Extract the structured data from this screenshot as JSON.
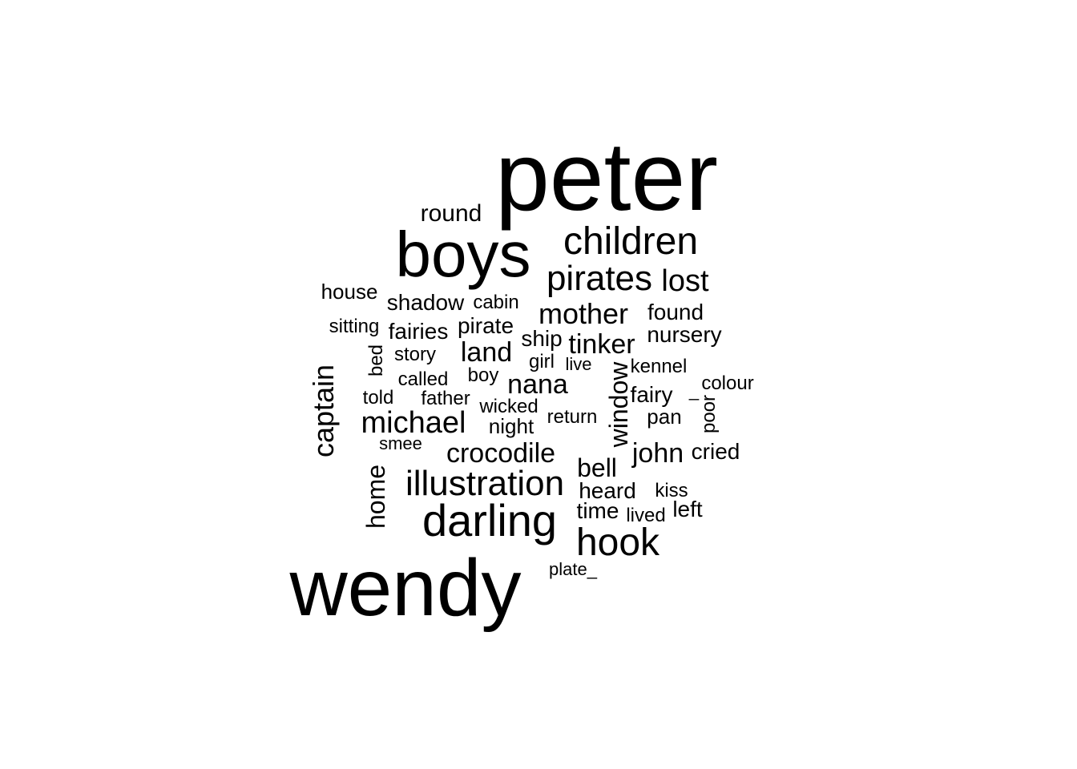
{
  "chart_data": {
    "type": "wordcloud",
    "color": "#000000",
    "words": [
      {
        "text": "peter",
        "orientation": "horizontal"
      },
      {
        "text": "wendy",
        "orientation": "horizontal"
      },
      {
        "text": "boys",
        "orientation": "horizontal"
      },
      {
        "text": "darling",
        "orientation": "horizontal"
      },
      {
        "text": "children",
        "orientation": "horizontal"
      },
      {
        "text": "hook",
        "orientation": "horizontal"
      },
      {
        "text": "illustration",
        "orientation": "horizontal"
      },
      {
        "text": "pirates",
        "orientation": "horizontal"
      },
      {
        "text": "michael",
        "orientation": "horizontal"
      },
      {
        "text": "captain",
        "orientation": "vertical"
      },
      {
        "text": "mother",
        "orientation": "horizontal"
      },
      {
        "text": "lost",
        "orientation": "horizontal"
      },
      {
        "text": "nana",
        "orientation": "horizontal"
      },
      {
        "text": "land",
        "orientation": "horizontal"
      },
      {
        "text": "crocodile",
        "orientation": "horizontal"
      },
      {
        "text": "tinker",
        "orientation": "horizontal"
      },
      {
        "text": "window",
        "orientation": "vertical"
      },
      {
        "text": "john",
        "orientation": "horizontal"
      },
      {
        "text": "bell",
        "orientation": "horizontal"
      },
      {
        "text": "home",
        "orientation": "vertical"
      },
      {
        "text": "round",
        "orientation": "horizontal"
      },
      {
        "text": "shadow",
        "orientation": "horizontal"
      },
      {
        "text": "pirate",
        "orientation": "horizontal"
      },
      {
        "text": "fairies",
        "orientation": "horizontal"
      },
      {
        "text": "nursery",
        "orientation": "horizontal"
      },
      {
        "text": "fairy",
        "orientation": "horizontal"
      },
      {
        "text": "heard",
        "orientation": "horizontal"
      },
      {
        "text": "time",
        "orientation": "horizontal"
      },
      {
        "text": "house",
        "orientation": "horizontal"
      },
      {
        "text": "found",
        "orientation": "horizontal"
      },
      {
        "text": "ship",
        "orientation": "horizontal"
      },
      {
        "text": "night",
        "orientation": "horizontal"
      },
      {
        "text": "left",
        "orientation": "horizontal"
      },
      {
        "text": "cried",
        "orientation": "horizontal"
      },
      {
        "text": "pan",
        "orientation": "horizontal"
      },
      {
        "text": "bed",
        "orientation": "vertical"
      },
      {
        "text": "cabin",
        "orientation": "horizontal"
      },
      {
        "text": "return",
        "orientation": "horizontal"
      },
      {
        "text": "kennel",
        "orientation": "horizontal"
      },
      {
        "text": "boy",
        "orientation": "horizontal"
      },
      {
        "text": "called",
        "orientation": "horizontal"
      },
      {
        "text": "told",
        "orientation": "horizontal"
      },
      {
        "text": "sitting",
        "orientation": "horizontal"
      },
      {
        "text": "poor",
        "orientation": "vertical"
      },
      {
        "text": "colour",
        "orientation": "horizontal"
      },
      {
        "text": "wicked",
        "orientation": "horizontal"
      },
      {
        "text": "father",
        "orientation": "horizontal"
      },
      {
        "text": "story",
        "orientation": "horizontal"
      },
      {
        "text": "girl",
        "orientation": "horizontal"
      },
      {
        "text": "live",
        "orientation": "horizontal"
      },
      {
        "text": "kiss",
        "orientation": "horizontal"
      },
      {
        "text": "lived",
        "orientation": "horizontal"
      },
      {
        "text": "smee",
        "orientation": "horizontal"
      },
      {
        "text": "plate_",
        "orientation": "horizontal"
      },
      {
        "text": "_",
        "orientation": "horizontal"
      }
    ]
  }
}
